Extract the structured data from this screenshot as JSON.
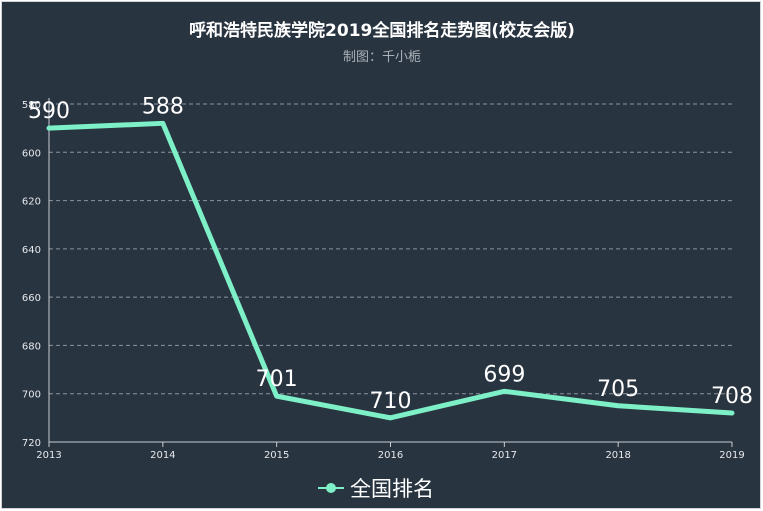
{
  "chart_data": {
    "type": "line",
    "title": "呼和浩特民族学院2019全国排名走势图(校友会版)",
    "subtitle": "制图：千小栀",
    "categories": [
      "2013",
      "2014",
      "2015",
      "2016",
      "2017",
      "2018",
      "2019"
    ],
    "series": [
      {
        "name": "全国排名",
        "values": [
          590,
          588,
          701,
          710,
          699,
          705,
          708
        ]
      }
    ],
    "y_axis": {
      "inverted": true,
      "ylim": [
        580,
        720
      ],
      "ticks": [
        "580",
        "600",
        "620",
        "640",
        "660",
        "680",
        "700",
        "720"
      ]
    },
    "grid": true,
    "legend": "bottom-center",
    "colors": {
      "background": "#293441",
      "line": "#7ef0c8",
      "grid": "#8a949e",
      "text": "#ffffff"
    }
  }
}
